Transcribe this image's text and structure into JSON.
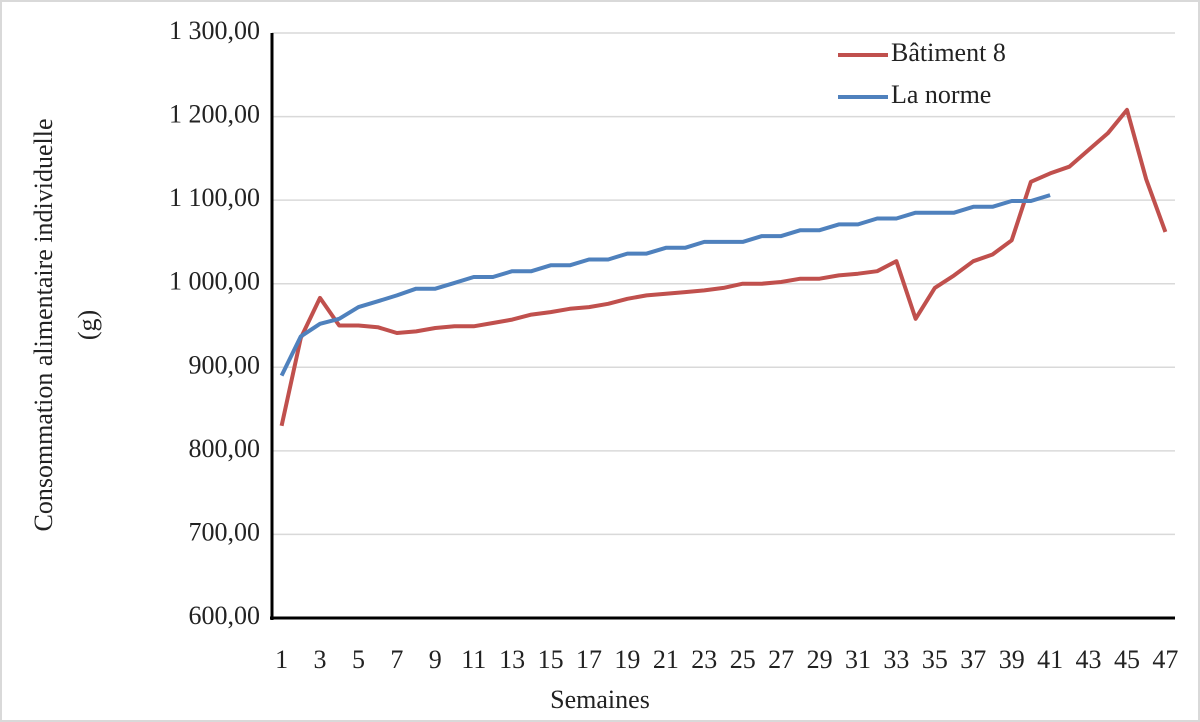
{
  "chart_data": {
    "type": "line",
    "x_label": "Semaines",
    "y_label": [
      "Consommation alimentaire individuelle",
      "(g)"
    ],
    "categories": [
      "1",
      null,
      "3",
      null,
      "5",
      null,
      "7",
      null,
      "9",
      null,
      "11",
      null,
      "13",
      null,
      "15",
      null,
      "17",
      null,
      "19",
      null,
      "21",
      null,
      "23",
      null,
      "25",
      null,
      "27",
      null,
      "29",
      null,
      "31",
      null,
      "33",
      null,
      "35",
      null,
      "37",
      null,
      "39",
      null,
      "41",
      null,
      "43",
      null,
      "45",
      null,
      "47"
    ],
    "series": [
      {
        "name": "Bâtiment 8",
        "color": "#c0504d",
        "values": [
          830,
          935,
          983,
          950,
          950,
          948,
          941,
          943,
          947,
          949,
          949,
          953,
          957,
          963,
          966,
          970,
          972,
          976,
          982,
          986,
          988,
          990,
          992,
          995,
          1000,
          1000,
          1002,
          1006,
          1006,
          1010,
          1012,
          1015,
          1027,
          958,
          995,
          1010,
          1027,
          1035,
          1052,
          1122,
          1132,
          1140,
          1160,
          1180,
          1208,
          1125,
          1062
        ]
      },
      {
        "name": "La norme",
        "color": "#4f81bd",
        "values": [
          890,
          937,
          952,
          958,
          972,
          979,
          986,
          994,
          994,
          1001,
          1008,
          1008,
          1015,
          1015,
          1022,
          1022,
          1029,
          1029,
          1036,
          1036,
          1043,
          1043,
          1050,
          1050,
          1050,
          1057,
          1057,
          1064,
          1064,
          1071,
          1071,
          1078,
          1078,
          1085,
          1085,
          1085,
          1092,
          1092,
          1099,
          1099,
          1106,
          null,
          null,
          null,
          null,
          null,
          null
        ]
      }
    ],
    "ylim": [
      600,
      1300
    ],
    "yticks": [
      {
        "value": 600,
        "label": "600,00"
      },
      {
        "value": 700,
        "label": "700,00"
      },
      {
        "value": 800,
        "label": "800,00"
      },
      {
        "value": 900,
        "label": "900,00"
      },
      {
        "value": 1000,
        "label": "1 000,00"
      },
      {
        "value": 1100,
        "label": "1 100,00"
      },
      {
        "value": 1200,
        "label": "1 200,00"
      },
      {
        "value": 1300,
        "label": "1 300,00"
      }
    ],
    "grid": true,
    "legend": "upper right"
  }
}
